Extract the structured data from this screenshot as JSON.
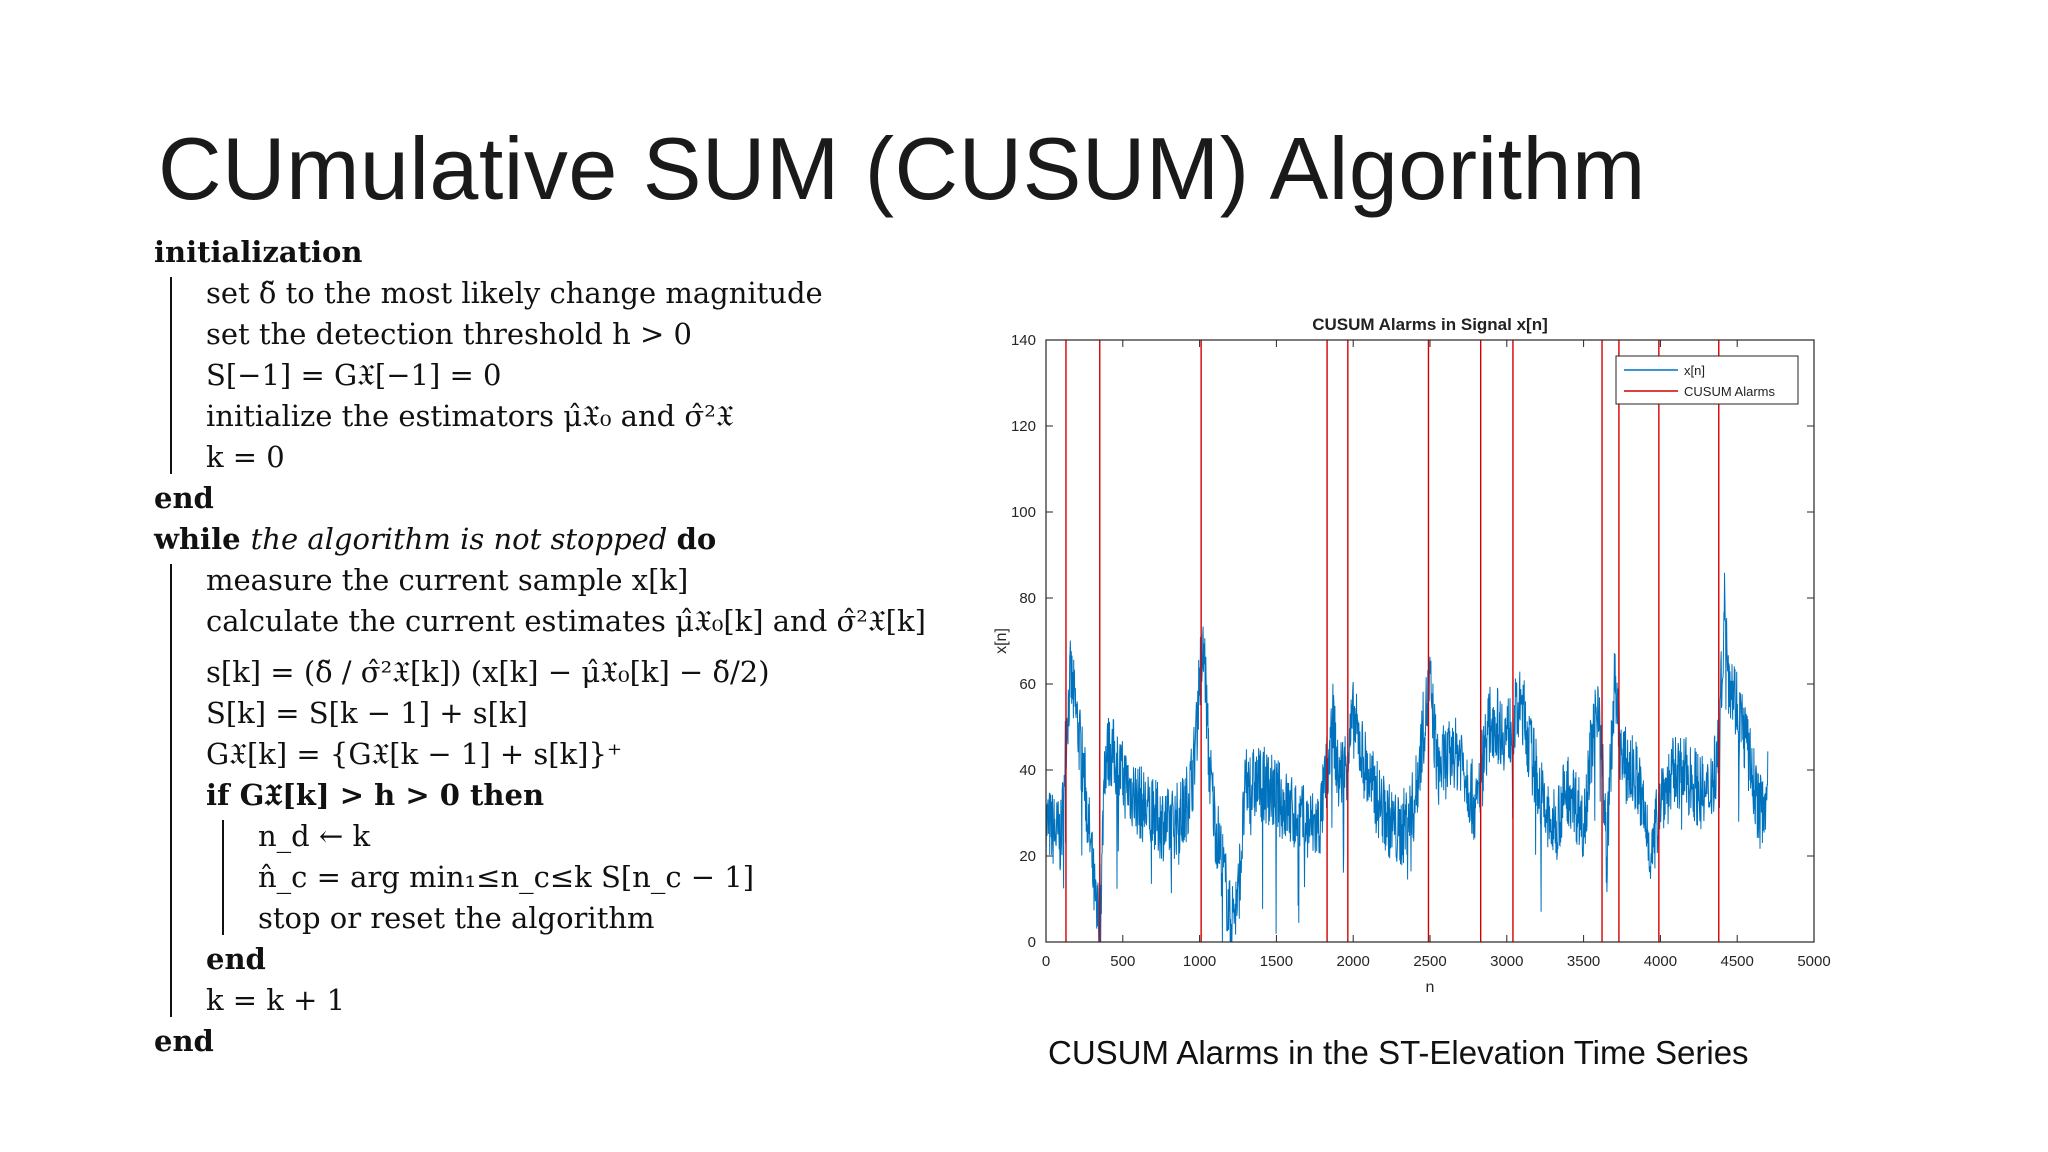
{
  "slide": {
    "title": "CUmulative SUM (CUSUM) Algorithm",
    "caption": "CUSUM Alarms in the ST-Elevation Time Series"
  },
  "algorithm": {
    "lines": [
      {
        "text": "initialization",
        "style": "kw",
        "indent": 0
      },
      {
        "text": "set δ̃ to the most likely change magnitude",
        "style": "normal",
        "indent": 1
      },
      {
        "text": "set the detection threshold h > 0",
        "style": "normal",
        "indent": 1
      },
      {
        "text": "S[−1] = G𝔛[−1] = 0",
        "style": "normal",
        "indent": 1
      },
      {
        "text": "initialize the estimators μ̂𝔛₀ and σ̂²𝔛",
        "style": "normal",
        "indent": 1
      },
      {
        "text": "k = 0",
        "style": "normal",
        "indent": 1
      },
      {
        "text": "end",
        "style": "kw",
        "indent": 0
      },
      {
        "text": "while the algorithm is not stopped do",
        "style": "while",
        "indent": 0
      },
      {
        "text": "measure the current sample x[k]",
        "style": "normal",
        "indent": 1
      },
      {
        "text": "calculate the current estimates μ̂𝔛₀[k] and σ̂²𝔛[k]",
        "style": "normal",
        "indent": 1
      },
      {
        "text": "s[k] = (δ̃ / σ̂²𝔛[k]) (x[k] − μ̂𝔛₀[k] − δ̃/2)",
        "style": "normal",
        "indent": 1
      },
      {
        "text": "S[k] = S[k − 1] + s[k]",
        "style": "normal",
        "indent": 1
      },
      {
        "text": "G𝔛[k] = {G𝔛[k − 1] + s[k]}⁺",
        "style": "normal",
        "indent": 1
      },
      {
        "text": "if G𝔛[k] > h > 0 then",
        "style": "kw",
        "indent": 1
      },
      {
        "text": "n_d ← k",
        "style": "normal",
        "indent": 2
      },
      {
        "text": "n̂_c = arg min₁≤n_c≤k S[n_c − 1]",
        "style": "normal",
        "indent": 2
      },
      {
        "text": "stop or reset the algorithm",
        "style": "normal",
        "indent": 2
      },
      {
        "text": "end",
        "style": "kw",
        "indent": 1
      },
      {
        "text": "k = k + 1",
        "style": "normal",
        "indent": 1
      },
      {
        "text": "end",
        "style": "kw",
        "indent": 0
      }
    ]
  },
  "chart_data": {
    "type": "line",
    "title": "CUSUM Alarms in Signal x[n]",
    "xlabel": "n",
    "ylabel": "x[n]",
    "xlim": [
      0,
      5000
    ],
    "ylim": [
      0,
      140
    ],
    "xticks": [
      0,
      500,
      1000,
      1500,
      2000,
      2500,
      3000,
      3500,
      4000,
      4500,
      5000
    ],
    "yticks": [
      0,
      20,
      40,
      60,
      80,
      100,
      120,
      140
    ],
    "grid": false,
    "legend_position": "top-right",
    "series": [
      {
        "name": "x[n]",
        "color": "#0072BD",
        "x": [
          0,
          50,
          100,
          130,
          160,
          200,
          250,
          300,
          330,
          360,
          380,
          420,
          500,
          600,
          700,
          800,
          900,
          960,
          1000,
          1030,
          1060,
          1100,
          1150,
          1200,
          1250,
          1300,
          1400,
          1500,
          1600,
          1700,
          1780,
          1830,
          1870,
          1900,
          1960,
          2000,
          2100,
          2200,
          2300,
          2400,
          2450,
          2500,
          2550,
          2600,
          2700,
          2800,
          2850,
          2900,
          3000,
          3050,
          3100,
          3150,
          3200,
          3250,
          3300,
          3400,
          3500,
          3550,
          3600,
          3650,
          3700,
          3750,
          3800,
          3850,
          3900,
          3950,
          4000,
          4050,
          4100,
          4200,
          4300,
          4380,
          4420,
          4450,
          4500,
          4550,
          4600,
          4650,
          4700
        ],
        "y": [
          28,
          26,
          24,
          48,
          62,
          52,
          38,
          18,
          5,
          12,
          42,
          45,
          38,
          33,
          29,
          27,
          30,
          40,
          62,
          68,
          42,
          28,
          18,
          5,
          10,
          36,
          37,
          34,
          30,
          27,
          27,
          40,
          52,
          38,
          42,
          52,
          38,
          30,
          25,
          32,
          48,
          60,
          40,
          42,
          44,
          30,
          45,
          52,
          48,
          52,
          55,
          45,
          38,
          30,
          26,
          36,
          28,
          45,
          58,
          20,
          60,
          42,
          40,
          38,
          28,
          20,
          35,
          36,
          40,
          38,
          33,
          45,
          80,
          62,
          55,
          48,
          38,
          30,
          36
        ]
      }
    ],
    "alarms": {
      "name": "CUSUM Alarms",
      "color": "#D40000",
      "x": [
        130,
        350,
        1010,
        1830,
        1965,
        2490,
        2830,
        3040,
        3620,
        3730,
        3990,
        4380
      ]
    }
  }
}
